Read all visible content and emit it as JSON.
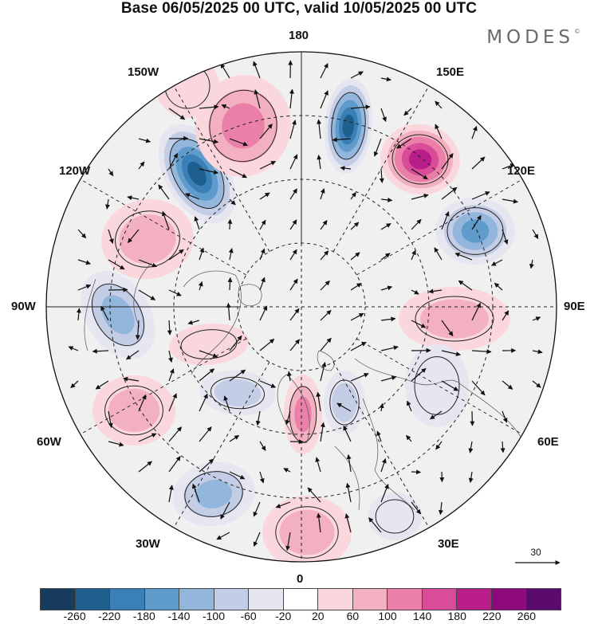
{
  "title": "Base 06/05/2025 00 UTC, valid 10/05/2025 00 UTC",
  "brand": "MODES",
  "brand_mark": "©",
  "lon_labels": {
    "top": "180",
    "top_left": "150W",
    "top_right": "150E",
    "upper_left": "120W",
    "upper_right": "120E",
    "left": "90W",
    "right": "90E",
    "lower_left": "60W",
    "lower_right": "60E",
    "bottom_left": "30W",
    "bottom_right": "30E",
    "bottom": "0"
  },
  "reference_vector": "30",
  "legend": {
    "colors": [
      "#173c5e",
      "#1f5f8e",
      "#3a80b7",
      "#5f9ccb",
      "#93b6dc",
      "#c3cde5",
      "#e6e6f1",
      "#ffffff",
      "#f9d7dc",
      "#f2b0c0",
      "#ea7fa7",
      "#d94c98",
      "#b91d8a",
      "#8e0a7a",
      "#5b0a6e"
    ],
    "ticks": [
      "-260",
      "-220",
      "-180",
      "-140",
      "-100",
      "-60",
      "-20",
      "20",
      "60",
      "100",
      "140",
      "180",
      "220",
      "260"
    ]
  }
}
